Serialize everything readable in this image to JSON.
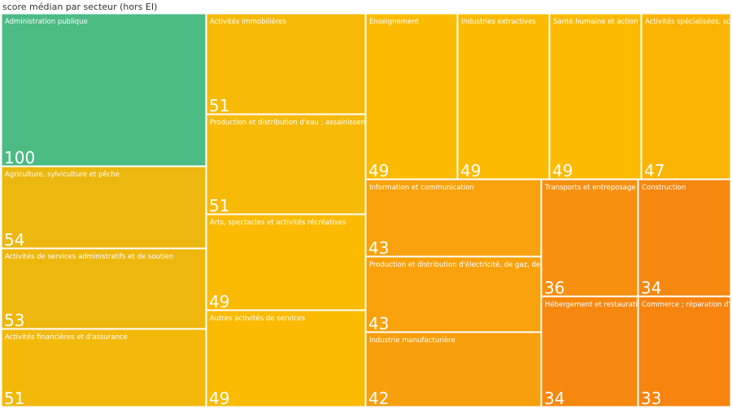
{
  "chart_data": {
    "type": "treemap",
    "title": "score médian par secteur (hors EI)",
    "categories": [
      "Administration publique",
      "Agriculture, sylviculture et pêche",
      "Activités de services administratifs et de soutien",
      "Activités financières et d'assurance",
      "Activités immobilières",
      "Production et distribution d'eau ; assainisseme…",
      "Arts, spectacles et activités récréatives",
      "Autres activités de services",
      "Enseignement",
      "Industries extractives",
      "Santé humaine et action s…",
      "Activités spécialisées, sci…",
      "Information et communication",
      "Production et distribution d'électricité, de gaz, de va…",
      "Industrie manufacturière",
      "Transports et entreposage",
      "Construction",
      "Hébergement et restaurati…",
      "Commerce ; réparation d'…"
    ],
    "values": [
      100,
      54,
      53,
      51,
      51,
      51,
      49,
      49,
      49,
      49,
      49,
      47,
      43,
      43,
      42,
      36,
      34,
      34,
      33
    ],
    "colors": [
      "#4dbb84",
      "#ecb70f",
      "#eeb70d",
      "#f3b90a",
      "#f6ba07",
      "#f6ba07",
      "#fbbb02",
      "#fbbb02",
      "#fcbb00",
      "#fcbb00",
      "#fcbb00",
      "#fbb404",
      "#f9a20b",
      "#f9a20b",
      "#f89f0c",
      "#f8900f",
      "#f7880f",
      "#f7880f",
      "#f7840f"
    ]
  }
}
